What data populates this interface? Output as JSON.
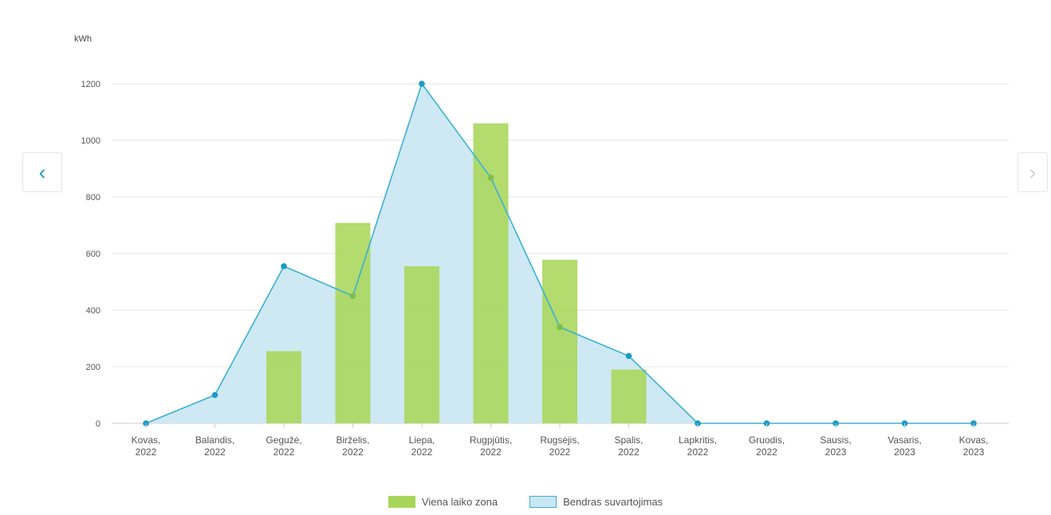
{
  "nav": {
    "prev_icon": "chevron-left-icon",
    "next_icon": "chevron-right-icon",
    "prev_glyph": "‹",
    "next_glyph": "›"
  },
  "colors": {
    "bar": "#a8d65a",
    "area_fill": "#c9e7f2",
    "line": "#3db0d4",
    "marker": "#1a9bc7",
    "marker_inside_bar": "#7cc04a",
    "grid": "#e4e4e4",
    "axis_text": "#555555"
  },
  "chart_data": {
    "type": "bar",
    "unit_label": "kWh",
    "categories": [
      [
        "Kovas,",
        "2022"
      ],
      [
        "Balandis,",
        "2022"
      ],
      [
        "Gegužė,",
        "2022"
      ],
      [
        "Birželis,",
        "2022"
      ],
      [
        "Liepa,",
        "2022"
      ],
      [
        "Rugpjūtis,",
        "2022"
      ],
      [
        "Rugsėjis,",
        "2022"
      ],
      [
        "Spalis,",
        "2022"
      ],
      [
        "Lapkritis,",
        "2022"
      ],
      [
        "Gruodis,",
        "2022"
      ],
      [
        "Sausis,",
        "2023"
      ],
      [
        "Vasaris,",
        "2023"
      ],
      [
        "Kovas,",
        "2023"
      ]
    ],
    "y_ticks": [
      0,
      200,
      400,
      600,
      800,
      1000,
      1200
    ],
    "ylim": [
      0,
      1200
    ],
    "grid": true,
    "legend_position": "bottom-center",
    "series": [
      {
        "name": "Viena laiko zona",
        "type": "bar",
        "values": [
          0,
          0,
          255,
          708,
          555,
          1060,
          578,
          190,
          0,
          0,
          0,
          0,
          0
        ]
      },
      {
        "name": "Bendras suvartojimas",
        "type": "area",
        "values": [
          0,
          100,
          555,
          450,
          1200,
          868,
          340,
          238,
          0,
          0,
          0,
          0,
          0
        ]
      }
    ]
  }
}
